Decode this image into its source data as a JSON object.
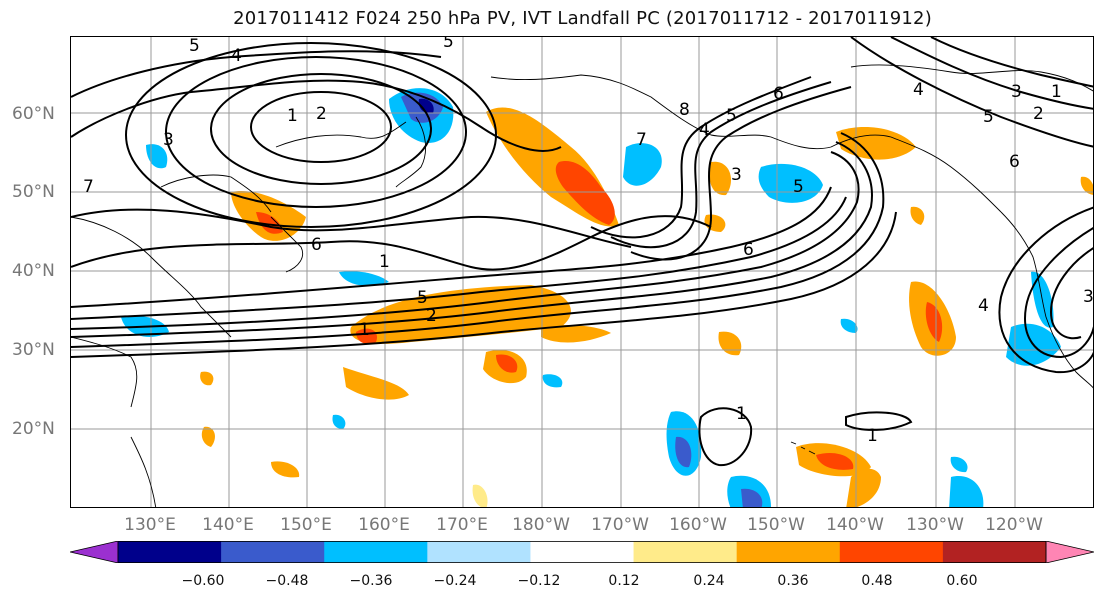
{
  "title": "2017011412 F024 250 hPa PV, IVT Landfall PC (2017011712 - 2017011912)",
  "lat_labels": [
    "60°N",
    "50°N",
    "40°N",
    "30°N",
    "20°N"
  ],
  "lon_labels": [
    "130°E",
    "140°E",
    "150°E",
    "160°E",
    "170°E",
    "180°W",
    "170°W",
    "160°W",
    "150°W",
    "140°W",
    "130°W",
    "120°W"
  ],
  "colorbar": {
    "colors": [
      "#9b30d0",
      "#00008b",
      "#3a5bcc",
      "#00bfff",
      "#b0e2ff",
      "#ffffff",
      "#ffeb8a",
      "#ffa500",
      "#ff4500",
      "#b22222",
      "#ff85b4"
    ],
    "ticks": [
      "−0.60",
      "−0.48",
      "−0.36",
      "−0.24",
      "−0.12",
      "0.12",
      "0.24",
      "0.36",
      "0.48",
      "0.60"
    ]
  },
  "contour_labels": [
    "5",
    "4",
    "5",
    "1",
    "2",
    "3",
    "7",
    "6",
    "1",
    "5",
    "2",
    "1",
    "8",
    "7",
    "4",
    "5",
    "3",
    "6",
    "6",
    "5",
    "4",
    "3",
    "2",
    "1",
    "5",
    "6",
    "4",
    "3",
    "1",
    "1"
  ]
}
